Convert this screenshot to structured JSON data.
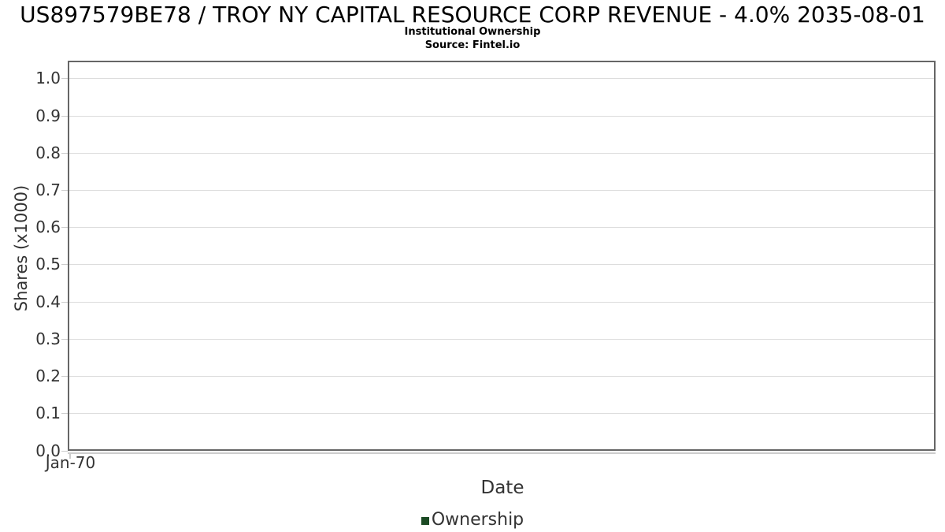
{
  "chart_data": {
    "type": "line",
    "title": "US897579BE78 / TROY NY CAPITAL RESOURCE CORP REVENUE - 4.0% 2035-08-01",
    "subtitle": "Institutional Ownership",
    "source": "Source: Fintel.io",
    "xlabel": "Date",
    "ylabel": "Shares (x1000)",
    "x_ticks": [
      "Jan-70"
    ],
    "y_ticks": [
      "1.0",
      "0.9",
      "0.8",
      "0.7",
      "0.6",
      "0.5",
      "0.4",
      "0.3",
      "0.2",
      "0.1",
      "0.0"
    ],
    "ylim": [
      0.0,
      1.05
    ],
    "grid": "horizontal",
    "legend": {
      "position": "bottom",
      "entries": [
        {
          "name": "Ownership",
          "color": "#1b4a24"
        }
      ]
    },
    "series": [
      {
        "name": "Ownership",
        "data": []
      }
    ]
  },
  "colors": {
    "plot_border": "#666666",
    "gridline": "#dcdcdc",
    "axis_line": "#cccccc",
    "tick_mark": "#cccccc",
    "tick_label": "#333333",
    "axis_title": "#333333",
    "title_text": "#000000",
    "legend_marker": "#1b4a24"
  }
}
